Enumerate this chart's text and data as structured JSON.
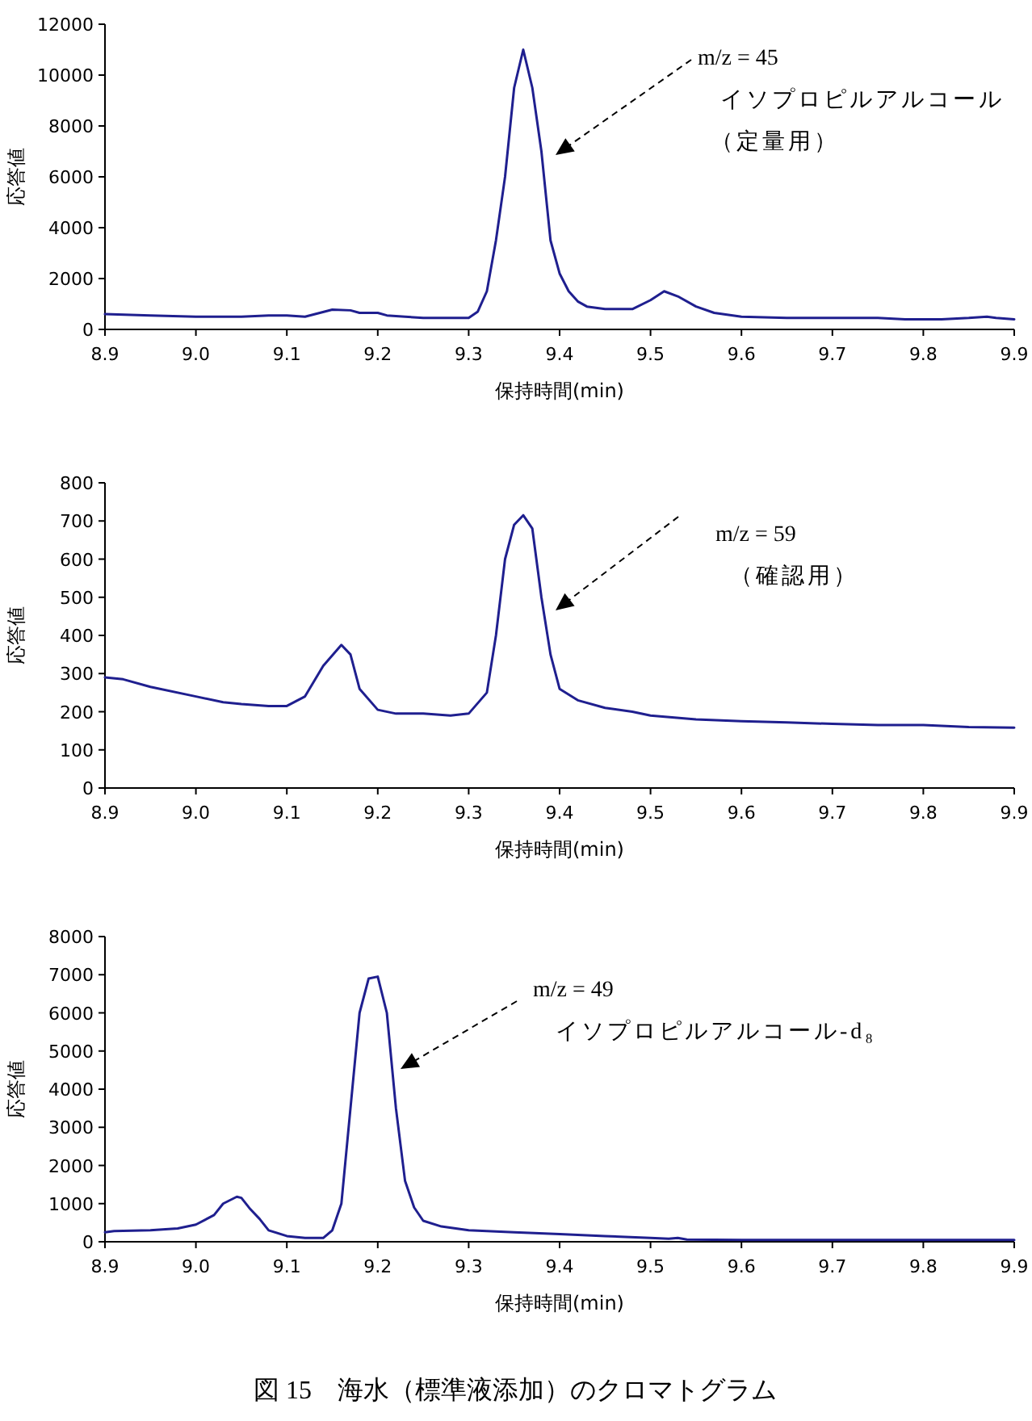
{
  "chart_data": [
    {
      "type": "line",
      "xlabel": "保持時間(min)",
      "ylabel": "応答値",
      "xlim": [
        8.9,
        9.9
      ],
      "ylim": [
        0,
        12000
      ],
      "xticks": [
        {
          "value": 8.9,
          "label": "8.9"
        },
        {
          "value": 9.0,
          "label": "9.0"
        },
        {
          "value": 9.1,
          "label": "9.1"
        },
        {
          "value": 9.2,
          "label": "9.2"
        },
        {
          "value": 9.3,
          "label": "9.3"
        },
        {
          "value": 9.4,
          "label": "9.4"
        },
        {
          "value": 9.5,
          "label": "9.5"
        },
        {
          "value": 9.6,
          "label": "9.6"
        },
        {
          "value": 9.7,
          "label": "9.7"
        },
        {
          "value": 9.8,
          "label": "9.8"
        },
        {
          "value": 9.9,
          "label": "9.9"
        }
      ],
      "yticks": [
        0,
        2000,
        4000,
        6000,
        8000,
        10000,
        12000
      ],
      "grid": false,
      "marker": "none",
      "line_style": "solid",
      "series": [
        {
          "color": "#1f1f8f",
          "x": [
            8.9,
            8.95,
            9.0,
            9.05,
            9.08,
            9.1,
            9.12,
            9.15,
            9.17,
            9.18,
            9.2,
            9.21,
            9.23,
            9.25,
            9.3,
            9.31,
            9.32,
            9.33,
            9.34,
            9.35,
            9.36,
            9.37,
            9.38,
            9.39,
            9.4,
            9.41,
            9.42,
            9.43,
            9.45,
            9.48,
            9.5,
            9.515,
            9.53,
            9.55,
            9.57,
            9.6,
            9.65,
            9.7,
            9.75,
            9.78,
            9.82,
            9.85,
            9.87,
            9.88,
            9.9
          ],
          "values": [
            600,
            550,
            500,
            500,
            550,
            550,
            500,
            780,
            750,
            650,
            650,
            550,
            500,
            450,
            450,
            700,
            1500,
            3500,
            6000,
            9500,
            11000,
            9500,
            7000,
            3500,
            2200,
            1500,
            1100,
            900,
            800,
            800,
            1150,
            1500,
            1300,
            900,
            650,
            500,
            450,
            450,
            450,
            400,
            400,
            450,
            500,
            450,
            400
          ]
        }
      ],
      "annotations": [
        "m/z = 45",
        "イソプロピルアルコール",
        "（定量用）"
      ]
    },
    {
      "type": "line",
      "xlabel": "保持時間(min)",
      "ylabel": "応答値",
      "xlim": [
        8.9,
        9.9
      ],
      "ylim": [
        0,
        800
      ],
      "xticks": [
        {
          "value": 8.9,
          "label": "8.9"
        },
        {
          "value": 9.0,
          "label": "9.0"
        },
        {
          "value": 9.1,
          "label": "9.1"
        },
        {
          "value": 9.2,
          "label": "9.2"
        },
        {
          "value": 9.3,
          "label": "9.3"
        },
        {
          "value": 9.4,
          "label": "9.4"
        },
        {
          "value": 9.5,
          "label": "9.5"
        },
        {
          "value": 9.6,
          "label": "9.6"
        },
        {
          "value": 9.7,
          "label": "9.7"
        },
        {
          "value": 9.8,
          "label": "9.8"
        },
        {
          "value": 9.9,
          "label": "9.9"
        }
      ],
      "yticks": [
        0,
        100,
        200,
        300,
        400,
        500,
        600,
        700,
        800
      ],
      "grid": false,
      "marker": "none",
      "line_style": "solid",
      "series": [
        {
          "color": "#1f1f8f",
          "x": [
            8.9,
            8.92,
            8.95,
            9.0,
            9.03,
            9.05,
            9.08,
            9.1,
            9.12,
            9.14,
            9.16,
            9.17,
            9.18,
            9.2,
            9.22,
            9.25,
            9.28,
            9.3,
            9.32,
            9.33,
            9.34,
            9.35,
            9.36,
            9.37,
            9.38,
            9.39,
            9.4,
            9.42,
            9.45,
            9.48,
            9.5,
            9.55,
            9.6,
            9.65,
            9.7,
            9.75,
            9.8,
            9.85,
            9.9
          ],
          "values": [
            290,
            285,
            265,
            240,
            225,
            220,
            215,
            215,
            240,
            320,
            375,
            350,
            260,
            205,
            195,
            195,
            190,
            195,
            250,
            400,
            600,
            690,
            715,
            680,
            500,
            350,
            260,
            230,
            210,
            200,
            190,
            180,
            175,
            172,
            168,
            165,
            165,
            160,
            158
          ]
        }
      ],
      "annotations": [
        "m/z = 59",
        "（確認用）"
      ]
    },
    {
      "type": "line",
      "xlabel": "保持時間(min)",
      "ylabel": "応答値",
      "xlim": [
        8.9,
        9.9
      ],
      "ylim": [
        0,
        8000
      ],
      "xticks": [
        {
          "value": 8.9,
          "label": "8.9"
        },
        {
          "value": 9.0,
          "label": "9.0"
        },
        {
          "value": 9.1,
          "label": "9.1"
        },
        {
          "value": 9.2,
          "label": "9.2"
        },
        {
          "value": 9.3,
          "label": "9.3"
        },
        {
          "value": 9.4,
          "label": "9.4"
        },
        {
          "value": 9.5,
          "label": "9.5"
        },
        {
          "value": 9.6,
          "label": "9.6"
        },
        {
          "value": 9.7,
          "label": "9.7"
        },
        {
          "value": 9.8,
          "label": "9.8"
        },
        {
          "value": 9.9,
          "label": "9.9"
        }
      ],
      "yticks": [
        0,
        1000,
        2000,
        3000,
        4000,
        5000,
        6000,
        7000,
        8000
      ],
      "grid": false,
      "marker": "none",
      "line_style": "solid",
      "series": [
        {
          "color": "#1f1f8f",
          "x": [
            8.9,
            8.91,
            8.95,
            8.98,
            9.0,
            9.02,
            9.03,
            9.045,
            9.05,
            9.06,
            9.07,
            9.08,
            9.1,
            9.12,
            9.14,
            9.15,
            9.16,
            9.17,
            9.18,
            9.19,
            9.2,
            9.21,
            9.22,
            9.23,
            9.24,
            9.25,
            9.27,
            9.3,
            9.35,
            9.4,
            9.45,
            9.5,
            9.52,
            9.53,
            9.54,
            9.6,
            9.7,
            9.8,
            9.9
          ],
          "values": [
            250,
            280,
            300,
            350,
            450,
            700,
            1000,
            1180,
            1150,
            850,
            600,
            300,
            150,
            100,
            100,
            300,
            1000,
            3500,
            6000,
            6900,
            6950,
            6000,
            3500,
            1600,
            900,
            550,
            400,
            300,
            250,
            200,
            150,
            100,
            80,
            100,
            60,
            50,
            50,
            50,
            50
          ]
        }
      ],
      "annotations": [
        "m/z = 49",
        "イソプロピルアルコール-d₈",
        "図 15　海水（標準液添加）のクロマトグラム"
      ]
    }
  ]
}
